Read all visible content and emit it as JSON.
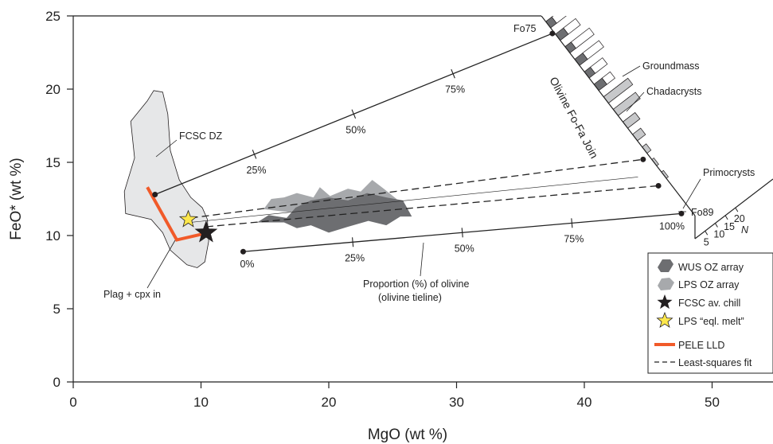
{
  "chart_data": {
    "type": "scatter",
    "xlabel": "MgO (wt %)",
    "ylabel": "FeO* (wt %)",
    "xlim": [
      0,
      55
    ],
    "ylim": [
      0,
      25
    ],
    "xticks": [
      0,
      10,
      20,
      30,
      40,
      50
    ],
    "yticks": [
      0,
      5,
      10,
      15,
      20,
      25
    ],
    "tielines": [
      {
        "name": "upper",
        "from": [
          6.4,
          12.8
        ],
        "to": [
          37.5,
          23.8
        ],
        "dash": "solid",
        "marks": [
          {
            "t": 0.25,
            "label": "25%"
          },
          {
            "t": 0.5,
            "label": "50%"
          },
          {
            "t": 0.75,
            "label": "75%"
          }
        ]
      },
      {
        "name": "lower",
        "from": [
          13.3,
          8.9
        ],
        "to": [
          47.6,
          11.5
        ],
        "dash": "solid",
        "start_label": "0%",
        "end_label": "100%",
        "marks": [
          {
            "t": 0.25,
            "label": "25%"
          },
          {
            "t": 0.5,
            "label": "50%"
          },
          {
            "t": 0.75,
            "label": "75%"
          }
        ]
      },
      {
        "name": "lsq1",
        "from": [
          9.2,
          11.2
        ],
        "to": [
          44.6,
          15.2
        ],
        "dash": "dashed"
      },
      {
        "name": "lsq2",
        "from": [
          10.4,
          10.6
        ],
        "to": [
          45.8,
          13.4
        ],
        "dash": "dashed"
      },
      {
        "name": "thin",
        "from": [
          9.2,
          10.9
        ],
        "to": [
          44.2,
          14.0
        ],
        "dash": "thin"
      }
    ],
    "tieline_endpoints": [
      [
        6.4,
        12.8
      ],
      [
        37.5,
        23.8
      ],
      [
        13.3,
        8.9
      ],
      [
        47.6,
        11.5
      ],
      [
        44.6,
        15.2
      ],
      [
        45.8,
        13.4
      ]
    ],
    "fcsc_dz_outline": [
      [
        5.8,
        19.2
      ],
      [
        6.3,
        19.9
      ],
      [
        7.0,
        19.8
      ],
      [
        7.4,
        18.3
      ],
      [
        7.6,
        15.8
      ],
      [
        8.3,
        13.8
      ],
      [
        9.2,
        12.6
      ],
      [
        10.1,
        11.9
      ],
      [
        10.5,
        11.1
      ],
      [
        10.6,
        9.6
      ],
      [
        10.3,
        8.2
      ],
      [
        9.7,
        7.8
      ],
      [
        8.9,
        8.0
      ],
      [
        7.6,
        9.0
      ],
      [
        7.0,
        10.2
      ],
      [
        6.1,
        11.1
      ],
      [
        4.1,
        11.5
      ],
      [
        4.0,
        13.0
      ],
      [
        4.8,
        15.3
      ],
      [
        4.5,
        17.8
      ]
    ],
    "pele_lld": [
      [
        5.8,
        13.3
      ],
      [
        8.1,
        9.7
      ],
      [
        10.1,
        10.1
      ]
    ],
    "fcsc_chill": [
      10.4,
      10.2
    ],
    "lps_melt": [
      9.0,
      11.1
    ],
    "wus_array": [
      [
        16.7,
        11.2
      ],
      [
        17.4,
        11.9
      ],
      [
        18.6,
        12.4
      ],
      [
        20.0,
        12.6
      ],
      [
        21.5,
        12.4
      ],
      [
        23.0,
        12.9
      ],
      [
        24.5,
        12.6
      ],
      [
        25.8,
        12.4
      ],
      [
        26.5,
        11.3
      ],
      [
        25.6,
        11.3
      ],
      [
        24.5,
        10.7
      ],
      [
        23.1,
        11.0
      ],
      [
        21.5,
        10.6
      ],
      [
        20.0,
        10.2
      ],
      [
        18.6,
        10.7
      ],
      [
        17.5,
        10.5
      ],
      [
        16.5,
        10.9
      ],
      [
        14.4,
        10.9
      ],
      [
        15.3,
        11.4
      ],
      [
        16.7,
        11.2
      ]
    ],
    "lps_array": [
      [
        14.9,
        11.8
      ],
      [
        15.5,
        12.5
      ],
      [
        16.5,
        12.6
      ],
      [
        17.5,
        12.9
      ],
      [
        18.8,
        12.6
      ],
      [
        19.3,
        13.3
      ],
      [
        20.1,
        12.7
      ],
      [
        21.5,
        13.2
      ],
      [
        22.5,
        13.0
      ],
      [
        23.4,
        13.8
      ],
      [
        24.3,
        13.2
      ],
      [
        25.3,
        12.5
      ],
      [
        25.8,
        11.7
      ],
      [
        24.6,
        11.8
      ],
      [
        22.4,
        11.4
      ],
      [
        21.0,
        11.8
      ],
      [
        19.6,
        11.3
      ],
      [
        18.3,
        11.8
      ],
      [
        16.8,
        11.6
      ],
      [
        14.9,
        11.8
      ]
    ],
    "annotations": {
      "fcsc_dz": "FCSC DZ",
      "plag_cpx": "Plag + cpx in",
      "proportion_line1": "Proportion (%) of olivine",
      "proportion_line2": "(olivine tieline)",
      "olivine_join": "Olivine Fo-Fa Join",
      "fo75": "Fo75",
      "fo89": "Fo89",
      "groundmass": "Groundmass",
      "chadacrysts": "Chadacrysts",
      "primocrysts": "Primocrysts",
      "n_label": "N",
      "n_ticks": [
        "5",
        "10",
        "15",
        "20"
      ]
    },
    "histogram": {
      "rows_per_mg_unit": 1,
      "groundmass": [
        5,
        6,
        9,
        8,
        6,
        4,
        6,
        5,
        4,
        3
      ],
      "chadacrysts": [
        3,
        4,
        3,
        4,
        3,
        4,
        5,
        3,
        2,
        1
      ],
      "primocrysts": [
        0,
        0,
        0,
        0,
        0,
        12,
        11,
        6,
        4,
        2,
        1,
        1
      ]
    },
    "legend": {
      "placement": "bottom-right",
      "items": [
        {
          "label": "WUS OZ array",
          "symbol": "blob-dark"
        },
        {
          "label": "LPS OZ array",
          "symbol": "blob-light"
        },
        {
          "label": "FCSC av. chill",
          "symbol": "star-black"
        },
        {
          "label": "LPS “eql. melt”",
          "symbol": "star-yellow"
        },
        {
          "label": "PELE LLD",
          "symbol": "line-orange"
        },
        {
          "label": "Least-squares fit",
          "symbol": "line-dashed"
        }
      ]
    },
    "colors": {
      "wus": "#6d6e71",
      "lps": "#a7a9ac",
      "dz_fill": "#e6e7e8",
      "pele": "#f15a29",
      "star_yellow": "#fde74c",
      "star_black": "#231f20",
      "hist_chad": "#6d6e71",
      "hist_prim": "#c7c8ca"
    }
  }
}
